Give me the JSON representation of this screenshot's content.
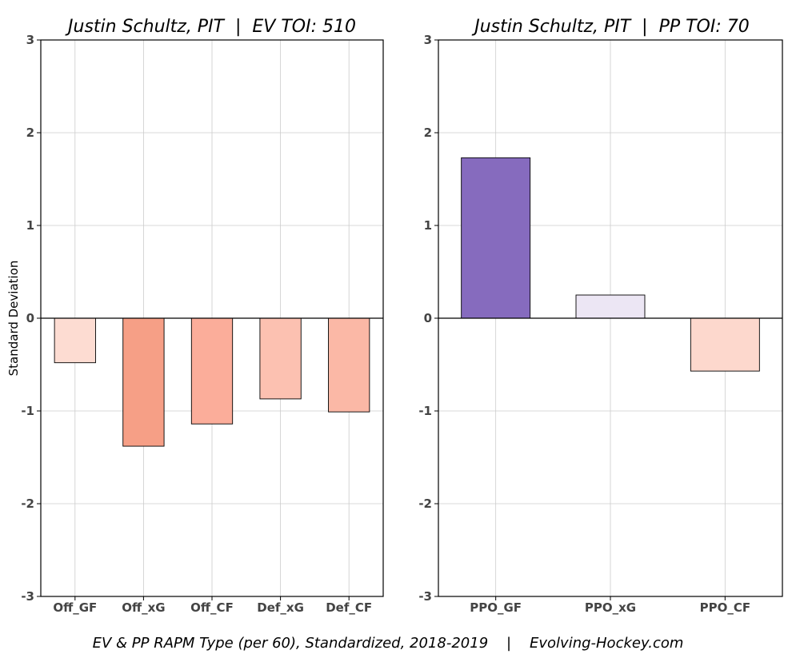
{
  "chart_data": [
    {
      "type": "bar",
      "title": "Justin Schultz, PIT  |  EV TOI: 510",
      "ylabel": "Standard Deviation",
      "ylim": [
        -3,
        3
      ],
      "yticks": [
        3,
        2,
        1,
        0,
        -1,
        -2,
        -3
      ],
      "grid": true,
      "categories": [
        "Off_GF",
        "Off_xG",
        "Off_CF",
        "Def_xG",
        "Def_CF"
      ],
      "values": [
        -0.48,
        -1.38,
        -1.14,
        -0.87,
        -1.01
      ],
      "colors": [
        "#fddcd2",
        "#f69f86",
        "#fbad9a",
        "#fcc1b1",
        "#fbb8a6"
      ]
    },
    {
      "type": "bar",
      "title": "Justin Schultz, PIT  |  PP TOI: 70",
      "ylabel": "",
      "ylim": [
        -3,
        3
      ],
      "yticks": [
        3,
        2,
        1,
        0,
        -1,
        -2,
        -3
      ],
      "grid": true,
      "categories": [
        "PPO_GF",
        "PPO_xG",
        "PPO_CF"
      ],
      "values": [
        1.73,
        0.25,
        -0.57
      ],
      "colors": [
        "#866bbe",
        "#ece6f4",
        "#fdd8cd"
      ]
    }
  ],
  "footer": "EV & PP RAPM Type (per 60), Standardized, 2018-2019    |    Evolving-Hockey.com"
}
